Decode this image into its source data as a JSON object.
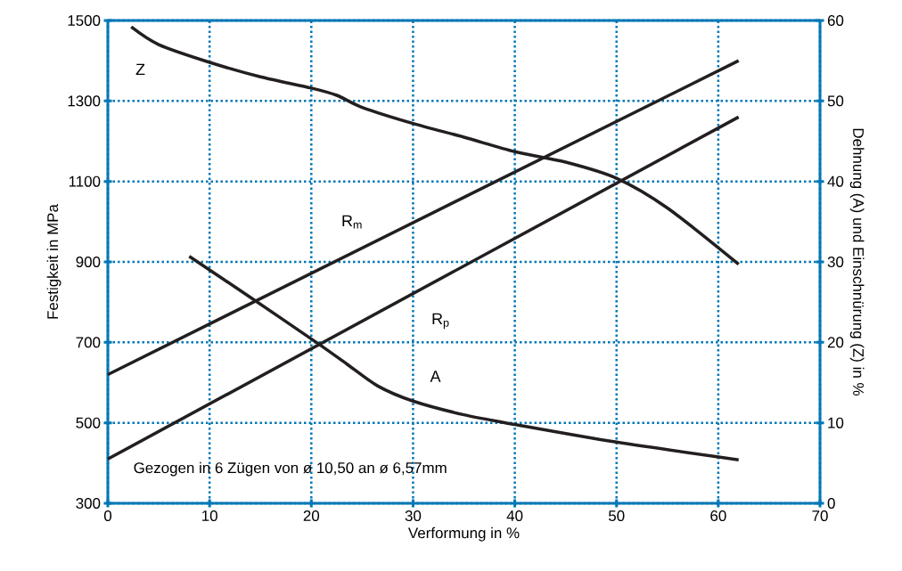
{
  "chart_data": {
    "type": "line",
    "xlabel": "Verformung in %",
    "ylabel": "Festigkeit in MPa",
    "y2label": "Dehnung (A) und Einschnürung (Z) in %",
    "xlim": [
      0,
      70
    ],
    "xticks": [
      0,
      10,
      20,
      30,
      40,
      50,
      60,
      70
    ],
    "ylim": [
      300,
      1500
    ],
    "yticks": [
      300,
      500,
      700,
      900,
      1100,
      1300,
      1500
    ],
    "y2lim": [
      0,
      60
    ],
    "y2ticks": [
      0,
      10,
      20,
      30,
      40,
      50,
      60
    ],
    "grid": true,
    "legend": false,
    "marker": "none",
    "line_style": "solid",
    "annotations": [
      "Gezogen in 6 Zügen von ø 10,50 an ø 6,57mm"
    ],
    "series": [
      {
        "name": "R$_{m}$",
        "color": "#231f20",
        "x": [
          0,
          62
        ],
        "values": [
          620,
          1400
        ]
      },
      {
        "name": "R$_{p}$",
        "color": "#231f20",
        "x": [
          0,
          62
        ],
        "values": [
          410,
          1260
        ]
      },
      {
        "name": "A",
        "color": "#231f20",
        "axis": "y2",
        "x": [
          8,
          14,
          20.5,
          23.5,
          26.5,
          30,
          35,
          40,
          50,
          62
        ],
        "values": [
          30.7,
          25.6,
          20,
          17.3,
          14.6,
          12.7,
          11,
          9.8,
          7.6,
          5.4
        ]
      },
      {
        "name": "Z",
        "color": "#231f20",
        "axis": "y2",
        "x": [
          2.3,
          5,
          10,
          15,
          20,
          22.5,
          25,
          30,
          35,
          40,
          45,
          50,
          55,
          62
        ],
        "values": [
          59.2,
          57,
          54.8,
          53,
          51.6,
          50.7,
          49.2,
          47.2,
          45.5,
          43.7,
          42.4,
          40.4,
          36.7,
          29.7
        ]
      }
    ]
  }
}
